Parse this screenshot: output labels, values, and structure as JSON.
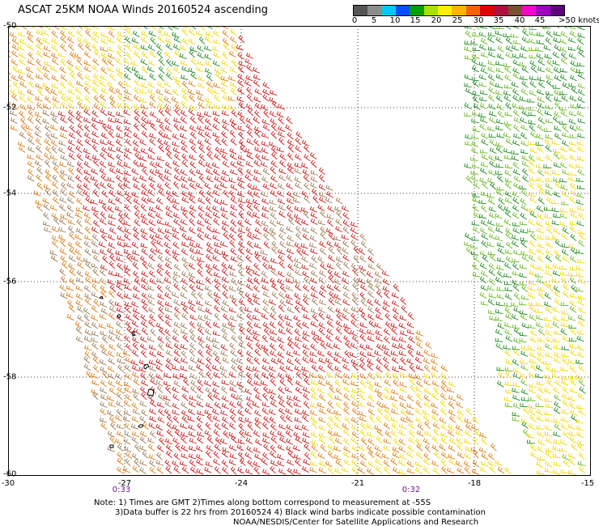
{
  "title": "ASCAT 25KM NOAA Winds 20160524 ascending",
  "colorbar": {
    "labels": [
      "0",
      "5",
      "10",
      "15",
      "20",
      "25",
      "30",
      "35",
      "40",
      "45",
      ">50 knots"
    ],
    "colors": [
      "#555555",
      "#8c8c8c",
      "#00c8ff",
      "#0050ff",
      "#00a000",
      "#a8e000",
      "#ffee00",
      "#ffb400",
      "#ff6000",
      "#e00000",
      "#b01040",
      "#7a5030",
      "#ff00d0",
      "#a000c0",
      "#600080"
    ]
  },
  "map": {
    "lat_labels": [
      "-50",
      "-52",
      "-54",
      "-56",
      "-58",
      "-60"
    ],
    "lon_labels": [
      "-30",
      "-27",
      "-24",
      "-21",
      "-18",
      "-15"
    ],
    "lat_range": [
      -60,
      -50
    ],
    "lon_range": [
      -30,
      -15
    ],
    "grid": "dotted"
  },
  "times": [
    "0:33",
    "0:32"
  ],
  "notes": {
    "line1": "Note: 1) Times are GMT 2)Times along bottom correspond to measurement at -55S",
    "line2": "3)Data buffer is 22 hrs from 20160524 4) Black wind barbs indicate possible contamination",
    "line3": "NOAA/NESDIS/Center for Satellite Applications and Research"
  },
  "swath_colors": {
    "strong": "#d21414",
    "brown": "#9a7852",
    "orange": "#e07a10",
    "yellow": "#f0d800",
    "green": "#1e8a1e",
    "light_green": "#6ab81e"
  }
}
